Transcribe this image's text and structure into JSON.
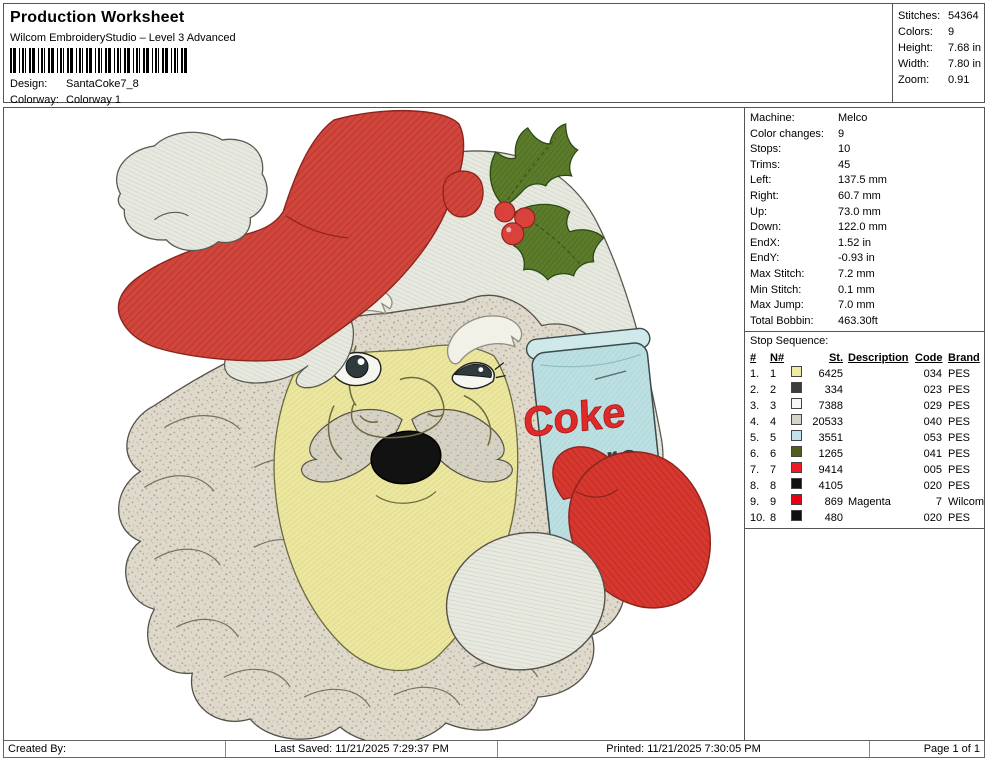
{
  "header": {
    "title": "Production Worksheet",
    "subtitle": "Wilcom EmbroideryStudio – Level 3 Advanced",
    "design_label": "Design:",
    "design_value": "SantaCoke7_8",
    "colorway_label": "Colorway:",
    "colorway_value": "Colorway 1"
  },
  "stats": [
    {
      "label": "Stitches:",
      "value": "54364"
    },
    {
      "label": "Colors:",
      "value": "9"
    },
    {
      "label": "Height:",
      "value": "7.68 in"
    },
    {
      "label": "Width:",
      "value": "7.80 in"
    },
    {
      "label": "Zoom:",
      "value": "0.91"
    }
  ],
  "machine_info": [
    {
      "label": "Machine:",
      "value": "Melco"
    },
    {
      "label": "Color changes:",
      "value": "9"
    },
    {
      "label": "Stops:",
      "value": "10"
    },
    {
      "label": "Trims:",
      "value": "45"
    },
    {
      "label": "Left:",
      "value": "137.5 mm"
    },
    {
      "label": "Right:",
      "value": "60.7 mm"
    },
    {
      "label": "Up:",
      "value": "73.0 mm"
    },
    {
      "label": "Down:",
      "value": "122.0 mm"
    },
    {
      "label": "EndX:",
      "value": "1.52 in"
    },
    {
      "label": "EndY:",
      "value": "-0.93 in"
    },
    {
      "label": "Max Stitch:",
      "value": "7.2 mm"
    },
    {
      "label": "Min Stitch:",
      "value": "0.1 mm"
    },
    {
      "label": "Max Jump:",
      "value": "7.0 mm"
    },
    {
      "label": "Total Bobbin:",
      "value": "463.30ft"
    }
  ],
  "stop_sequence": {
    "title": "Stop Sequence:",
    "columns": {
      "num": "#",
      "needle": "N#",
      "stitches": "St.",
      "description": "Description",
      "code": "Code",
      "brand": "Brand"
    },
    "rows": [
      {
        "num": "1.",
        "needle": "1",
        "swatch": "#f1eaa4",
        "st": "6425",
        "description": "",
        "code": "034",
        "brand": "PES"
      },
      {
        "num": "2.",
        "needle": "2",
        "swatch": "#3d3d3d",
        "st": "334",
        "description": "",
        "code": "023",
        "brand": "PES"
      },
      {
        "num": "3.",
        "needle": "3",
        "swatch": "#f7f7f5",
        "st": "7388",
        "description": "",
        "code": "029",
        "brand": "PES"
      },
      {
        "num": "4.",
        "needle": "4",
        "swatch": "#d7d3c7",
        "st": "20533",
        "description": "",
        "code": "040",
        "brand": "PES"
      },
      {
        "num": "5.",
        "needle": "5",
        "swatch": "#c3e1ed",
        "st": "3551",
        "description": "",
        "code": "053",
        "brand": "PES"
      },
      {
        "num": "6.",
        "needle": "6",
        "swatch": "#4e5e1d",
        "st": "1265",
        "description": "",
        "code": "041",
        "brand": "PES"
      },
      {
        "num": "7.",
        "needle": "7",
        "swatch": "#ee1b23",
        "st": "9414",
        "description": "",
        "code": "005",
        "brand": "PES"
      },
      {
        "num": "8.",
        "needle": "8",
        "swatch": "#101010",
        "st": "4105",
        "description": "",
        "code": "020",
        "brand": "PES"
      },
      {
        "num": "9.",
        "needle": "9",
        "swatch": "#e50016",
        "st": "869",
        "description": "Magenta",
        "code": "7",
        "brand": "Wilcom"
      },
      {
        "num": "10.",
        "needle": "8",
        "swatch": "#101010",
        "st": "480",
        "description": "",
        "code": "020",
        "brand": "PES"
      }
    ]
  },
  "footer": {
    "created_by": "Created By:",
    "last_saved": "Last Saved: 11/21/2025 7:29:37 PM",
    "printed": "Printed: 11/21/2025 7:30:05 PM",
    "page": "Page 1 of 1"
  },
  "design": {
    "can_line1": "Coke",
    "can_line2": "zero",
    "colors": {
      "hat_red": "#d0453c",
      "hat_red_line": "#b23229",
      "mitten_red": "#d6382f",
      "mitten_red_line": "#b5271f",
      "face_yellow": "#ebe6a0",
      "face_line": "#d9d078",
      "trim_gray": "#e7e9e0",
      "trim_line": "#ccd1c2",
      "beard_gray": "#ded9cb",
      "mustache_gray": "#d6d2c3",
      "holly_green": "#5d7c2b",
      "holly_line": "#48661f",
      "berry_red": "#d9413d",
      "can_blue": "#bce0e2",
      "can_line": "#a4cfd2",
      "coke_text_red": "#e02a2a",
      "zero_text_dark": "#3c3e3e"
    }
  }
}
